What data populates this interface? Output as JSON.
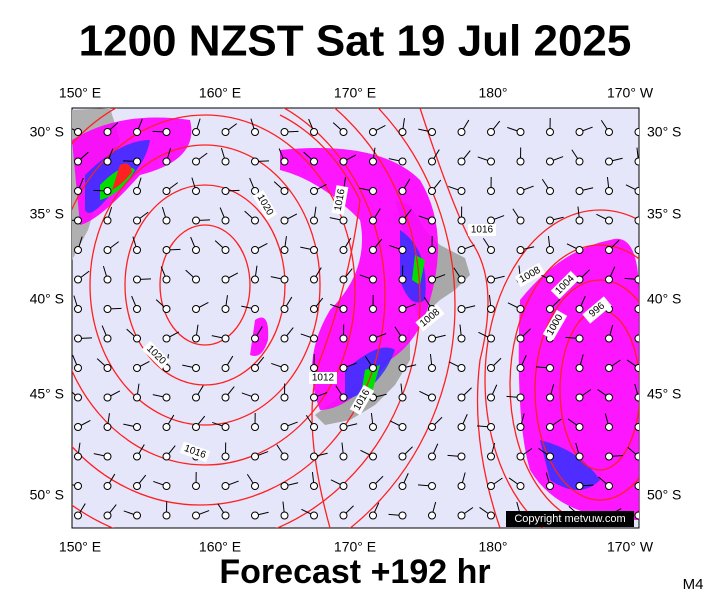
{
  "title": "1200 NZST Sat 19 Jul 2025",
  "footer": "Forecast +192 hr",
  "model": "M4",
  "copyright": "Copyright metvuw.com",
  "longitude_labels": [
    "150° E",
    "160° E",
    "170° E",
    "180°",
    "170° W"
  ],
  "latitude_labels": [
    "30° S",
    "35° S",
    "40° S",
    "45° S",
    "50° S"
  ],
  "isobar_labels": [
    "1020",
    "1016",
    "1016",
    "1008",
    "1004",
    "996",
    "1000",
    "1008",
    "1012",
    "1016",
    "1020",
    "1016"
  ]
}
